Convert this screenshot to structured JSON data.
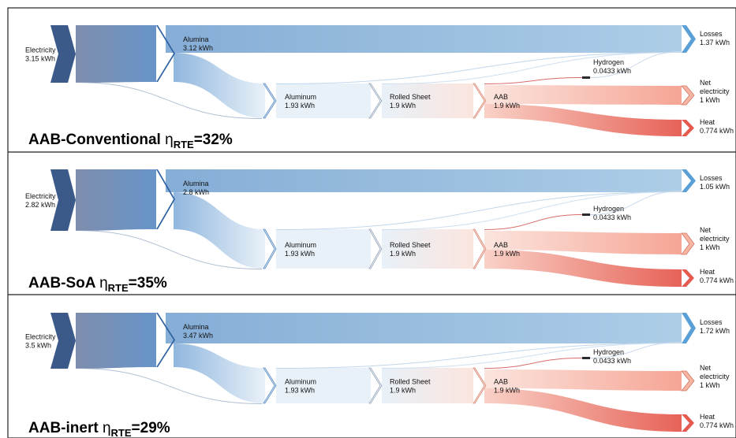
{
  "palette": {
    "blue_dark": "#3b5a8a",
    "blue_mid": "#5f8fc6",
    "blue_light": "#a9cbe6",
    "blue_pale": "#e7f0f8",
    "red_pale": "#fbe3dc",
    "red_mid": "#f5a08f",
    "red_strong": "#e55a4f",
    "panel_border": "#222222"
  },
  "panels": [
    {
      "title": "AAB-Conventional",
      "eta": "η",
      "eta_sub": "RTE",
      "eta_value": "=32%",
      "nodes": {
        "electricity": {
          "name": "Electricity",
          "value": "3.15 kWh"
        },
        "alumina": {
          "name": "Alumina",
          "value": "3.12 kWh"
        },
        "aluminum": {
          "name": "Aluminum",
          "value": "1.93 kWh"
        },
        "rolled": {
          "name": "Rolled Sheet",
          "value": "1.9 kWh"
        },
        "aab": {
          "name": "AAB",
          "value": "1.9 kWh"
        },
        "hydrogen": {
          "name": "Hydrogen",
          "value": "0.0433 kWh"
        },
        "losses": {
          "name": "Losses",
          "value": "1.37 kWh"
        },
        "net": {
          "name": [
            "Net",
            "electricity"
          ],
          "value": "1 kWh"
        },
        "heat": {
          "name": "Heat",
          "value": "0.774 kWh"
        }
      }
    },
    {
      "title": "AAB-SoA",
      "eta": "η",
      "eta_sub": "RTE",
      "eta_value": "=35%",
      "nodes": {
        "electricity": {
          "name": "Electricity",
          "value": "2.82 kWh"
        },
        "alumina": {
          "name": "Alumina",
          "value": "2.8 kWh"
        },
        "aluminum": {
          "name": "Aluminum",
          "value": "1.93 kWh"
        },
        "rolled": {
          "name": "Rolled Sheet",
          "value": "1.9 kWh"
        },
        "aab": {
          "name": "AAB",
          "value": "1.9 kWh"
        },
        "hydrogen": {
          "name": "Hydrogen",
          "value": "0.0433 kWh"
        },
        "losses": {
          "name": "Losses",
          "value": "1.05 kWh"
        },
        "net": {
          "name": [
            "Net",
            "electricity"
          ],
          "value": "1 kWh"
        },
        "heat": {
          "name": "Heat",
          "value": "0.774 kWh"
        }
      }
    },
    {
      "title": "AAB-inert",
      "eta": "η",
      "eta_sub": "RTE",
      "eta_value": "=29%",
      "nodes": {
        "electricity": {
          "name": "Electricity",
          "value": "3.5 kWh"
        },
        "alumina": {
          "name": "Alumina",
          "value": "3.47 kWh"
        },
        "aluminum": {
          "name": "Aluminum",
          "value": "1.93 kWh"
        },
        "rolled": {
          "name": "Rolled Sheet",
          "value": "1.9 kWh"
        },
        "aab": {
          "name": "AAB",
          "value": "1.9 kWh"
        },
        "hydrogen": {
          "name": "Hydrogen",
          "value": "0.0433 kWh"
        },
        "losses": {
          "name": "Losses",
          "value": "1.72 kWh"
        },
        "net": {
          "name": [
            "Net",
            "electricity"
          ],
          "value": "1 kWh"
        },
        "heat": {
          "name": "Heat",
          "value": "0.774 kWh"
        }
      }
    }
  ]
}
